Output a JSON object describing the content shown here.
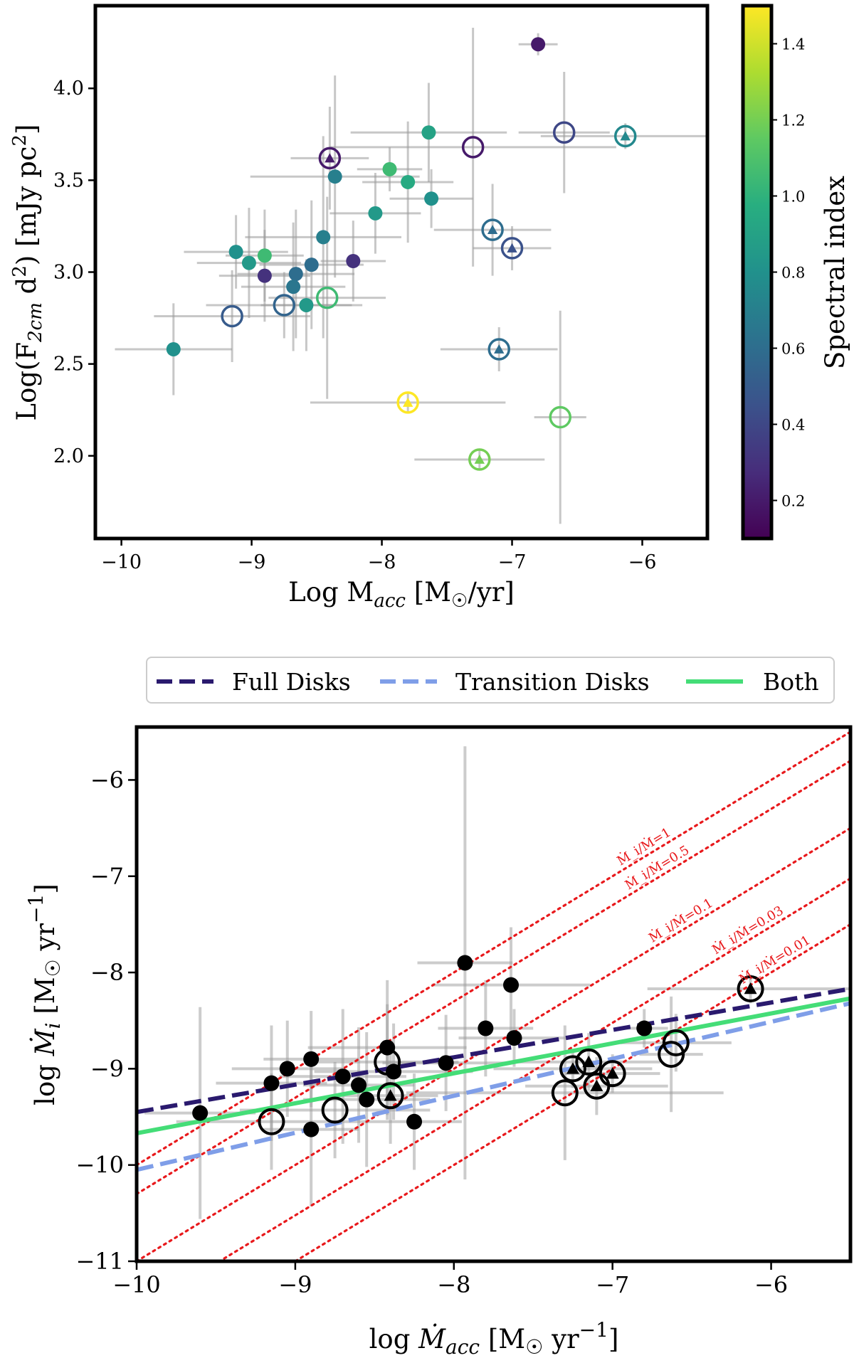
{
  "chart_data": [
    {
      "type": "scatter",
      "xlabel": "Log M_acc [M☉/yr]",
      "ylabel": "Log(F_2cm d²) [mJy pc²]",
      "xlim": [
        -10.2,
        -5.5
      ],
      "ylim": [
        1.55,
        4.45
      ],
      "xticks": [
        -10,
        -9,
        -8,
        -7,
        -6
      ],
      "yticks": [
        2.0,
        2.5,
        3.0,
        3.5,
        4.0
      ],
      "colorbar": {
        "label": "Spectral index",
        "range": [
          0.1,
          1.5
        ],
        "ticks": [
          0.2,
          0.4,
          0.6,
          0.8,
          1.0,
          1.2,
          1.4
        ],
        "colormap": "viridis"
      },
      "points": [
        {
          "x": -6.8,
          "y": 4.24,
          "c": 0.2,
          "marker": "filled",
          "xerr": 0.15,
          "yerr": 0.06
        },
        {
          "x": -6.6,
          "y": 3.76,
          "c": 0.4,
          "marker": "open",
          "xerr": 0.35,
          "yerr": 0.33
        },
        {
          "x": -6.13,
          "y": 3.74,
          "c": 0.75,
          "marker": "triangle",
          "xerr": 0.65,
          "yerr": 0.07
        },
        {
          "x": -7.3,
          "y": 3.68,
          "c": 0.2,
          "marker": "open",
          "xerr": 1.1,
          "yerr": 0.65
        },
        {
          "x": -8.4,
          "y": 3.62,
          "c": 0.2,
          "marker": "triangle",
          "xerr": 0.3,
          "yerr": 0.28
        },
        {
          "x": -7.64,
          "y": 3.76,
          "c": 0.9,
          "marker": "filled",
          "xerr": 0.6,
          "yerr": 0.27
        },
        {
          "x": -7.94,
          "y": 3.56,
          "c": 1.05,
          "marker": "filled",
          "xerr": 0.25,
          "yerr": 0.12
        },
        {
          "x": -8.36,
          "y": 3.52,
          "c": 0.7,
          "marker": "filled",
          "xerr": 0.65,
          "yerr": 0.55
        },
        {
          "x": -7.8,
          "y": 3.49,
          "c": 0.95,
          "marker": "filled",
          "xerr": 0.35,
          "yerr": 0.33
        },
        {
          "x": -7.62,
          "y": 3.4,
          "c": 0.8,
          "marker": "filled",
          "xerr": 0.32,
          "yerr": 0.16
        },
        {
          "x": -8.05,
          "y": 3.32,
          "c": 0.85,
          "marker": "filled",
          "xerr": 0.35,
          "yerr": 0.22
        },
        {
          "x": -8.45,
          "y": 3.19,
          "c": 0.7,
          "marker": "filled",
          "xerr": 0.6,
          "yerr": 0.55
        },
        {
          "x": -7.15,
          "y": 3.23,
          "c": 0.6,
          "marker": "triangle",
          "xerr": 0.45,
          "yerr": 0.25
        },
        {
          "x": -7.0,
          "y": 3.13,
          "c": 0.45,
          "marker": "triangle",
          "xerr": 0.3,
          "yerr": 0.12
        },
        {
          "x": -9.12,
          "y": 3.11,
          "c": 0.8,
          "marker": "filled",
          "xerr": 0.4,
          "yerr": 0.2
        },
        {
          "x": -8.22,
          "y": 3.06,
          "c": 0.3,
          "marker": "filled",
          "xerr": 0.25,
          "yerr": 0.22
        },
        {
          "x": -9.02,
          "y": 3.05,
          "c": 0.85,
          "marker": "filled",
          "xerr": 0.4,
          "yerr": 0.3
        },
        {
          "x": -8.9,
          "y": 3.09,
          "c": 1.05,
          "marker": "filled",
          "xerr": 0.3,
          "yerr": 0.25
        },
        {
          "x": -8.54,
          "y": 3.04,
          "c": 0.6,
          "marker": "filled",
          "xerr": 0.4,
          "yerr": 0.35
        },
        {
          "x": -8.66,
          "y": 2.99,
          "c": 0.6,
          "marker": "filled",
          "xerr": 0.45,
          "yerr": 0.35
        },
        {
          "x": -8.9,
          "y": 2.98,
          "c": 0.3,
          "marker": "filled",
          "xerr": 0.35,
          "yerr": 0.25
        },
        {
          "x": -8.68,
          "y": 2.92,
          "c": 0.65,
          "marker": "filled",
          "xerr": 0.4,
          "yerr": 0.35
        },
        {
          "x": -8.42,
          "y": 2.86,
          "c": 1.05,
          "marker": "open",
          "xerr": 0.45,
          "yerr": 0.55
        },
        {
          "x": -8.58,
          "y": 2.82,
          "c": 0.85,
          "marker": "filled",
          "xerr": 0.35,
          "yerr": 0.25
        },
        {
          "x": -8.75,
          "y": 2.82,
          "c": 0.55,
          "marker": "open",
          "xerr": 0.6,
          "yerr": 0.18
        },
        {
          "x": -9.15,
          "y": 2.76,
          "c": 0.5,
          "marker": "open",
          "xerr": 0.6,
          "yerr": 0.25
        },
        {
          "x": -7.1,
          "y": 2.58,
          "c": 0.6,
          "marker": "triangle",
          "xerr": 0.45,
          "yerr": 0.12
        },
        {
          "x": -9.6,
          "y": 2.58,
          "c": 0.8,
          "marker": "filled",
          "xerr": 0.45,
          "yerr": 0.25
        },
        {
          "x": -7.8,
          "y": 2.29,
          "c": 1.5,
          "marker": "triangle",
          "xerr": 0.75,
          "yerr": 0.05
        },
        {
          "x": -6.63,
          "y": 2.21,
          "c": 1.15,
          "marker": "open",
          "xerr": 0.2,
          "yerr": 0.58
        },
        {
          "x": -7.25,
          "y": 1.98,
          "c": 1.2,
          "marker": "triangle",
          "xerr": 0.5,
          "yerr": 0.06
        }
      ]
    },
    {
      "type": "scatter",
      "xlabel": "log Ṁ_acc [M☉ yr⁻¹]",
      "ylabel": "log Ṁ_i [M☉ yr⁻¹]",
      "xlim": [
        -10.0,
        -5.5
      ],
      "ylim": [
        -11.0,
        -5.45
      ],
      "xticks": [
        -10,
        -9,
        -8,
        -7,
        -6
      ],
      "yticks": [
        -11,
        -10,
        -9,
        -8,
        -7,
        -6
      ],
      "legend": {
        "placement": "top",
        "entries": [
          "Full Disks",
          "Transition Disks",
          "Both"
        ]
      },
      "fits": [
        {
          "name": "Full Disks",
          "style": "dashed",
          "color": "#2a1a6e",
          "x": [
            -10.0,
            -5.5
          ],
          "y": [
            -9.45,
            -8.17
          ]
        },
        {
          "name": "Transition Disks",
          "style": "dashed",
          "color": "#7f9ee8",
          "x": [
            -10.0,
            -5.5
          ],
          "y": [
            -10.05,
            -8.32
          ]
        },
        {
          "name": "Both",
          "style": "solid",
          "color": "#44dd77",
          "x": [
            -10.0,
            -5.5
          ],
          "y": [
            -9.67,
            -8.27
          ]
        }
      ],
      "ratio_lines": [
        {
          "label": "Ṁ_i/Ṁ=1",
          "ratio": 1
        },
        {
          "label": "Ṁ_i/Ṁ=0.5",
          "ratio": 0.5
        },
        {
          "label": "Ṁ_i/Ṁ=0.1",
          "ratio": 0.1
        },
        {
          "label": "Ṁ_i/Ṁ=0.03",
          "ratio": 0.03
        },
        {
          "label": "Ṁ_i/Ṁ=0.01",
          "ratio": 0.01
        }
      ],
      "points": [
        {
          "x": -9.6,
          "y": -9.46,
          "marker": "filled",
          "xerr": 0.35,
          "yerr": 1.1
        },
        {
          "x": -9.15,
          "y": -9.15,
          "marker": "filled",
          "xerr": 0.35,
          "yerr": 0.6
        },
        {
          "x": -9.05,
          "y": -9.0,
          "marker": "filled",
          "xerr": 0.35,
          "yerr": 0.5
        },
        {
          "x": -8.9,
          "y": -8.9,
          "marker": "filled",
          "xerr": 0.3,
          "yerr": 0.5
        },
        {
          "x": -8.9,
          "y": -9.63,
          "marker": "filled",
          "xerr": 0.3,
          "yerr": 0.8
        },
        {
          "x": -8.7,
          "y": -9.08,
          "marker": "filled",
          "xerr": 0.4,
          "yerr": 0.7
        },
        {
          "x": -8.6,
          "y": -9.17,
          "marker": "filled",
          "xerr": 0.35,
          "yerr": 0.6
        },
        {
          "x": -8.55,
          "y": -9.32,
          "marker": "filled",
          "xerr": 0.4,
          "yerr": 0.7
        },
        {
          "x": -8.42,
          "y": -8.78,
          "marker": "filled",
          "xerr": 0.5,
          "yerr": 0.7
        },
        {
          "x": -8.38,
          "y": -9.03,
          "marker": "filled",
          "xerr": 0.5,
          "yerr": 0.5
        },
        {
          "x": -8.25,
          "y": -9.55,
          "marker": "filled",
          "xerr": 0.3,
          "yerr": 0.5
        },
        {
          "x": -8.05,
          "y": -8.94,
          "marker": "filled",
          "xerr": 0.4,
          "yerr": 0.5
        },
        {
          "x": -7.93,
          "y": -7.9,
          "marker": "filled",
          "xerr": 0.3,
          "yerr": 2.25
        },
        {
          "x": -7.8,
          "y": -8.58,
          "marker": "filled",
          "xerr": 0.3,
          "yerr": 0.5
        },
        {
          "x": -7.64,
          "y": -8.13,
          "marker": "filled",
          "xerr": 0.5,
          "yerr": 0.6
        },
        {
          "x": -7.62,
          "y": -8.68,
          "marker": "filled",
          "xerr": 0.35,
          "yerr": 0.3
        },
        {
          "x": -6.8,
          "y": -8.58,
          "marker": "filled",
          "xerr": 0.15,
          "yerr": 0.2
        },
        {
          "x": -9.15,
          "y": -9.55,
          "marker": "open",
          "xerr": 0.6,
          "yerr": 0.5
        },
        {
          "x": -8.75,
          "y": -9.43,
          "marker": "open",
          "xerr": 0.6,
          "yerr": 0.5
        },
        {
          "x": -8.42,
          "y": -8.93,
          "marker": "open",
          "xerr": 0.45,
          "yerr": 0.6
        },
        {
          "x": -7.3,
          "y": -9.25,
          "marker": "open",
          "xerr": 1.0,
          "yerr": 0.7
        },
        {
          "x": -6.63,
          "y": -8.85,
          "marker": "open",
          "xerr": 0.2,
          "yerr": 0.6
        },
        {
          "x": -6.6,
          "y": -8.73,
          "marker": "open",
          "xerr": 0.35,
          "yerr": 0.3
        },
        {
          "x": -8.4,
          "y": -9.28,
          "marker": "triangle",
          "xerr": 0.3,
          "yerr": 0.5
        },
        {
          "x": -7.25,
          "y": -9.0,
          "marker": "triangle",
          "xerr": 0.5,
          "yerr": 0.2
        },
        {
          "x": -7.15,
          "y": -8.93,
          "marker": "triangle",
          "xerr": 0.45,
          "yerr": 0.3
        },
        {
          "x": -7.1,
          "y": -9.18,
          "marker": "triangle",
          "xerr": 0.45,
          "yerr": 0.3
        },
        {
          "x": -7.0,
          "y": -9.05,
          "marker": "triangle",
          "xerr": 0.3,
          "yerr": 0.2
        },
        {
          "x": -6.13,
          "y": -8.17,
          "marker": "triangle",
          "xerr": 0.65,
          "yerr": 0.15
        }
      ]
    }
  ]
}
